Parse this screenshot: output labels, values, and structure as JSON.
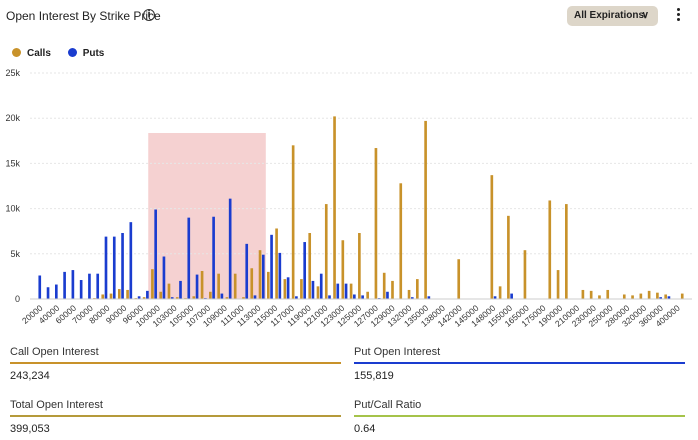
{
  "header": {
    "title": "Open Interest By Strike Price",
    "info_icon": "info-circle-icon",
    "expiration_label": "All Expirations",
    "chevron_icon": "chevron-down-icon",
    "menu_icon": "kebab-menu-icon"
  },
  "legend": {
    "calls_label": "Calls",
    "puts_label": "Puts",
    "calls_color": "#c8922a",
    "puts_color": "#1a3ccf"
  },
  "chart_data": {
    "type": "bar",
    "y_ticks": [
      "0",
      "5k",
      "10k",
      "15k",
      "20k",
      "25k"
    ],
    "ylim": [
      0,
      25000
    ],
    "grid": true,
    "legend_position": "top-left",
    "x_tick_labels": [
      "20000",
      "40000",
      "60000",
      "70000",
      "80000",
      "90000",
      "96000",
      "100000",
      "103000",
      "105000",
      "107000",
      "109000",
      "111000",
      "113000",
      "115000",
      "117000",
      "119000",
      "121000",
      "123000",
      "125000",
      "127000",
      "129000",
      "132000",
      "135000",
      "138000",
      "142000",
      "145000",
      "148000",
      "155000",
      "165000",
      "175000",
      "190000",
      "210000",
      "230000",
      "250000",
      "280000",
      "320000",
      "360000",
      "400000"
    ],
    "highlight_region_color": "#f3c9c9",
    "series": [
      {
        "name": "Calls",
        "color": "#c8922a",
        "values": [
          0,
          0,
          0,
          0,
          0,
          0,
          0,
          100,
          500,
          600,
          1100,
          1000,
          100,
          200,
          3300,
          800,
          1700,
          200,
          100,
          300,
          3100,
          800,
          2800,
          200,
          2800,
          200,
          3400,
          5400,
          3000,
          7800,
          2200,
          17000,
          2200,
          7300,
          1400,
          10500,
          20200,
          6500,
          1700,
          7300,
          800,
          16700,
          2900,
          2000,
          12800,
          1000,
          2200,
          19700,
          0,
          0,
          0,
          4400,
          0,
          0,
          0,
          13700,
          1400,
          9200,
          0,
          5400,
          0,
          0,
          10900,
          3200,
          10500,
          0,
          1000,
          900,
          400,
          1000,
          0,
          500,
          400,
          600,
          900,
          700,
          500,
          0,
          600
        ]
      },
      {
        "name": "Puts",
        "color": "#1a3ccf",
        "values": [
          2600,
          1300,
          1600,
          3000,
          3200,
          2100,
          2800,
          2800,
          6900,
          6900,
          7300,
          8500,
          300,
          900,
          9900,
          4700,
          200,
          2000,
          9000,
          2700,
          100,
          9100,
          600,
          11100,
          0,
          6100,
          400,
          4900,
          7100,
          5100,
          2400,
          300,
          6300,
          2000,
          2800,
          400,
          1700,
          1700,
          500,
          400,
          0,
          100,
          800,
          0,
          0,
          200,
          0,
          300,
          0,
          0,
          0,
          0,
          0,
          0,
          0,
          300,
          0,
          600,
          0,
          0,
          0,
          0,
          0,
          0,
          0,
          0,
          0,
          0,
          0,
          0,
          0,
          0,
          0,
          0,
          0,
          200,
          300,
          0,
          0
        ]
      }
    ]
  },
  "stats": {
    "call_oi_label": "Call Open Interest",
    "call_oi_value": "243,234",
    "put_oi_label": "Put Open Interest",
    "put_oi_value": "155,819",
    "total_oi_label": "Total Open Interest",
    "total_oi_value": "399,053",
    "pc_ratio_label": "Put/Call Ratio",
    "pc_ratio_value": "0.64",
    "call_color": "#c8922a",
    "put_color": "#1a3ccf",
    "total_color": "#b59a3a",
    "ratio_color": "#a5c34a"
  }
}
